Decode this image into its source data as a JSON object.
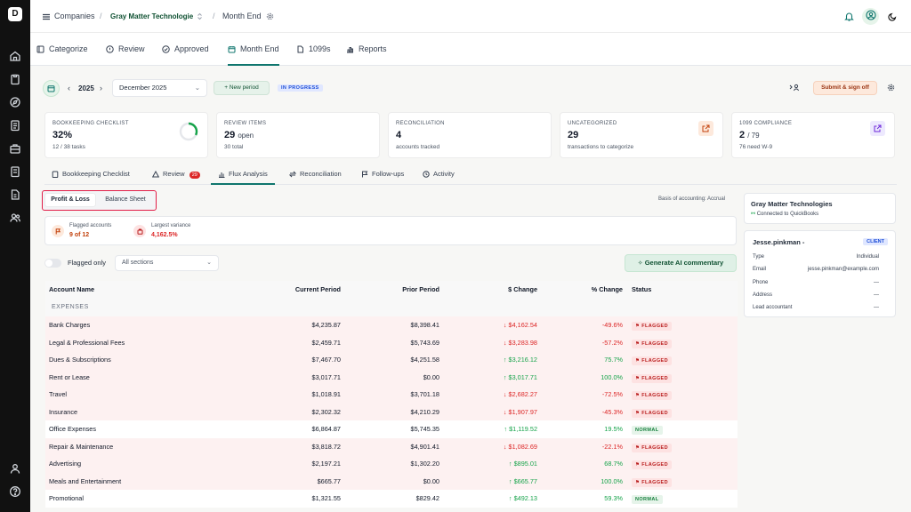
{
  "topbar": {
    "breadcrumb": [
      "Companies",
      "Gray Matter Technologie",
      "Month End"
    ]
  },
  "nav_tabs": [
    "Categorize",
    "Review",
    "Approved",
    "Month End",
    "1099s",
    "Reports"
  ],
  "toolbar": {
    "year": "2025",
    "month": "December 2025",
    "new_period": "New period",
    "status_badge": "IN PROGRESS",
    "submit": "Submit & sign off"
  },
  "cards": [
    {
      "title": "BOOKKEEPING CHECKLIST",
      "value": "32%",
      "value_suffix": "",
      "sub": "12 / 38 tasks"
    },
    {
      "title": "REVIEW ITEMS",
      "value": "29",
      "value_suffix": "open",
      "sub": "30 total"
    },
    {
      "title": "RECONCILIATION",
      "value": "4",
      "value_suffix": "",
      "sub": "accounts tracked"
    },
    {
      "title": "UNCATEGORIZED",
      "value": "29",
      "value_suffix": "",
      "sub": "transactions to categorize"
    },
    {
      "title": "1099 COMPLIANCE",
      "value": "2",
      "value_suffix": "/ 79",
      "sub": "76 need W-9"
    }
  ],
  "checklist_progress": 0.32,
  "sub_tabs": [
    {
      "label": "Bookkeeping Checklist"
    },
    {
      "label": "Review",
      "count": "29"
    },
    {
      "label": "Flux Analysis"
    },
    {
      "label": "Reconciliation"
    },
    {
      "label": "Follow-ups"
    },
    {
      "label": "Activity"
    }
  ],
  "flux": {
    "toggle_pl": "Profit & Loss",
    "toggle_bs": "Balance Sheet",
    "basis": "Basis of accounting: Accrual",
    "flagged_label": "Flagged accounts",
    "flagged_value": "9 of 12",
    "variance_label": "Largest variance",
    "variance_value": "4,162.5%",
    "flagged_only": "Flagged only",
    "sections_placeholder": "All sections",
    "generate": "Generate AI commentary"
  },
  "table": {
    "headers": [
      "Account Name",
      "Current Period",
      "Prior Period",
      "$ Change",
      "% Change",
      "Status"
    ],
    "section": "EXPENSES",
    "rows": [
      {
        "name": "Bank Charges",
        "current": "$4,235.87",
        "prior": "$8,398.41",
        "change": "$4,162.54",
        "dir": "down",
        "pct": "-49.6%",
        "status": "FLAGGED"
      },
      {
        "name": "Legal & Professional Fees",
        "current": "$2,459.71",
        "prior": "$5,743.69",
        "change": "$3,283.98",
        "dir": "down",
        "pct": "-57.2%",
        "status": "FLAGGED"
      },
      {
        "name": "Dues & Subscriptions",
        "current": "$7,467.70",
        "prior": "$4,251.58",
        "change": "$3,216.12",
        "dir": "up",
        "pct": "75.7%",
        "status": "FLAGGED"
      },
      {
        "name": "Rent or Lease",
        "current": "$3,017.71",
        "prior": "$0.00",
        "change": "$3,017.71",
        "dir": "up",
        "pct": "100.0%",
        "status": "FLAGGED"
      },
      {
        "name": "Travel",
        "current": "$1,018.91",
        "prior": "$3,701.18",
        "change": "$2,682.27",
        "dir": "down",
        "pct": "-72.5%",
        "status": "FLAGGED"
      },
      {
        "name": "Insurance",
        "current": "$2,302.32",
        "prior": "$4,210.29",
        "change": "$1,907.97",
        "dir": "down",
        "pct": "-45.3%",
        "status": "FLAGGED"
      },
      {
        "name": "Office Expenses",
        "current": "$6,864.87",
        "prior": "$5,745.35",
        "change": "$1,119.52",
        "dir": "up",
        "pct": "19.5%",
        "status": "NORMAL"
      },
      {
        "name": "Repair & Maintenance",
        "current": "$3,818.72",
        "prior": "$4,901.41",
        "change": "$1,082.69",
        "dir": "down",
        "pct": "-22.1%",
        "status": "FLAGGED"
      },
      {
        "name": "Advertising",
        "current": "$2,197.21",
        "prior": "$1,302.20",
        "change": "$895.01",
        "dir": "up",
        "pct": "68.7%",
        "status": "FLAGGED"
      },
      {
        "name": "Meals and Entertainment",
        "current": "$665.77",
        "prior": "$0.00",
        "change": "$665.77",
        "dir": "up",
        "pct": "100.0%",
        "status": "FLAGGED"
      },
      {
        "name": "Promotional",
        "current": "$1,321.55",
        "prior": "$829.42",
        "change": "$492.13",
        "dir": "up",
        "pct": "59.3%",
        "status": "NORMAL"
      }
    ]
  },
  "company": {
    "name": "Gray Matter Technologies",
    "connected": "Connected to QuickBooks"
  },
  "client": {
    "name": "Jesse.pinkman -",
    "badge": "CLIENT",
    "fields": [
      {
        "label": "Type",
        "value": "Individual"
      },
      {
        "label": "Email",
        "value": "jesse.pinkman@example.com"
      },
      {
        "label": "Phone",
        "value": "—"
      },
      {
        "label": "Address",
        "value": "—"
      },
      {
        "label": "Lead accountant",
        "value": "—"
      }
    ]
  },
  "colors": {
    "accent": "#0f766e",
    "flag_bg": "#fdf1f1",
    "negative": "#dc2626",
    "positive": "#16a34a"
  }
}
